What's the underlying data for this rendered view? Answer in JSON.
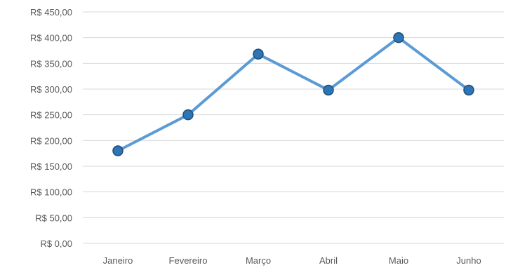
{
  "chart_data": {
    "type": "line",
    "title": "",
    "xlabel": "",
    "ylabel": "",
    "categories": [
      "Janeiro",
      "Fevereiro",
      "Março",
      "Abril",
      "Maio",
      "Junho"
    ],
    "series": [
      {
        "values": [
          180,
          250,
          368,
          298,
          400,
          298
        ]
      }
    ],
    "ylim": [
      0,
      450
    ],
    "yticks": [
      {
        "value": 0,
        "label": "R$ 0,00"
      },
      {
        "value": 50,
        "label": "R$ 50,00"
      },
      {
        "value": 100,
        "label": "R$ 100,00"
      },
      {
        "value": 150,
        "label": "R$ 150,00"
      },
      {
        "value": 200,
        "label": "R$ 200,00"
      },
      {
        "value": 250,
        "label": "R$ 250,00"
      },
      {
        "value": 300,
        "label": "R$ 300,00"
      },
      {
        "value": 350,
        "label": "R$ 350,00"
      },
      {
        "value": 400,
        "label": "R$ 400,00"
      },
      {
        "value": 450,
        "label": "R$ 450,00"
      }
    ],
    "grid": true,
    "legend": "none",
    "colors": {
      "line": "#5b9bd5",
      "marker_fill": "#2e75b6",
      "marker_stroke": "#1f4e79",
      "grid": "#d9d9d9",
      "text": "#595959"
    }
  }
}
